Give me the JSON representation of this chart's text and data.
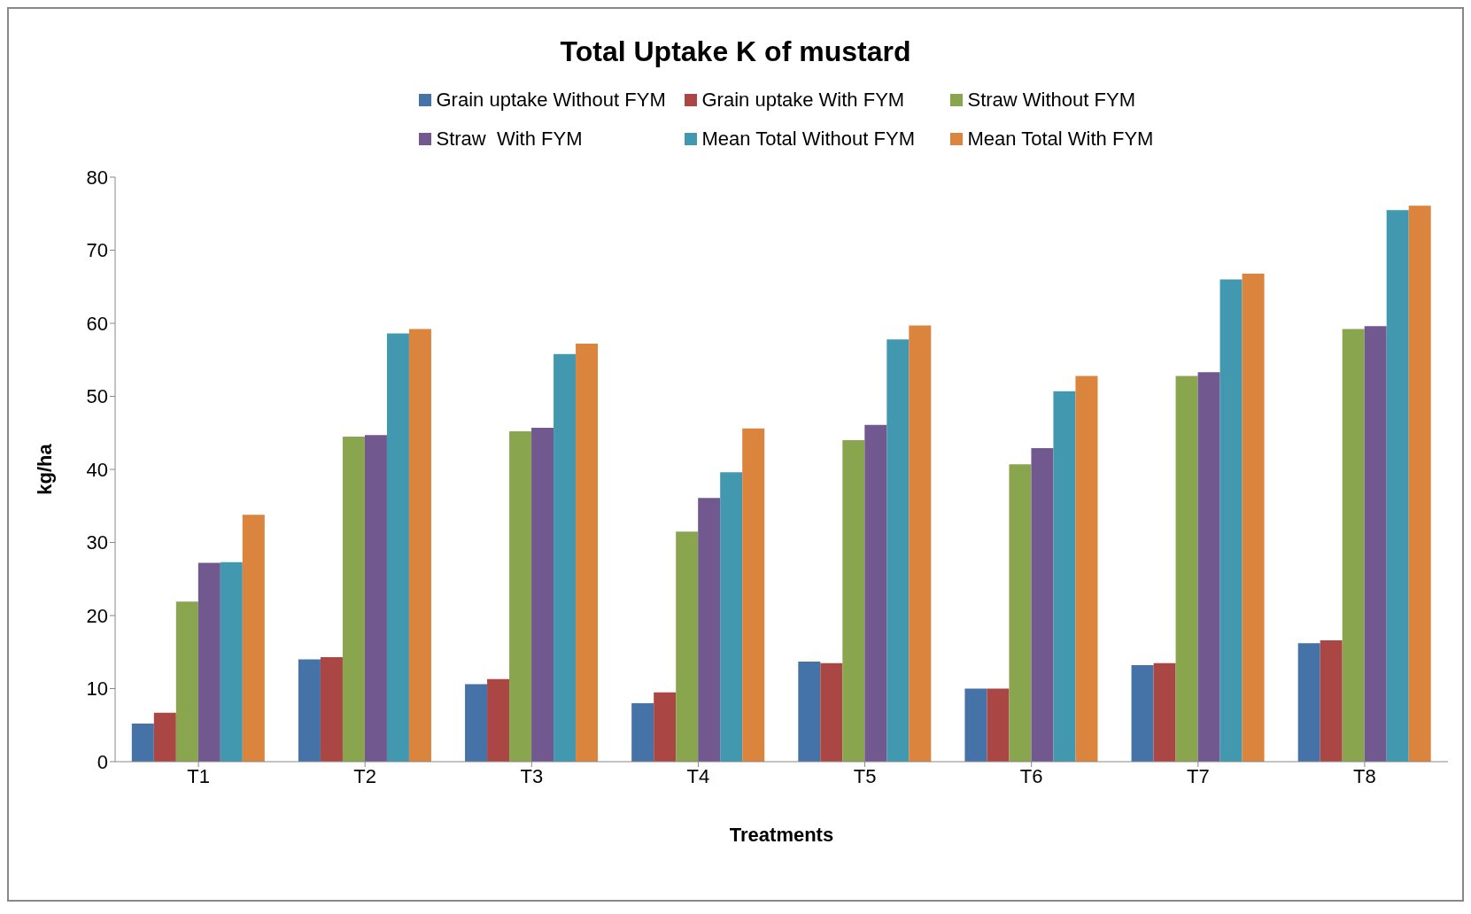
{
  "chart_data": {
    "type": "bar",
    "title": "Total Uptake K of mustard",
    "xlabel": "Treatments",
    "ylabel": "kg/ha",
    "categories": [
      "T1",
      "T2",
      "T3",
      "T4",
      "T5",
      "T6",
      "T7",
      "T8"
    ],
    "series": [
      {
        "name": "Grain uptake Without FYM",
        "color": "#4572a7",
        "values": [
          5.2,
          14.0,
          10.6,
          8.0,
          13.7,
          10.0,
          13.2,
          16.2
        ]
      },
      {
        "name": "Grain uptake With FYM",
        "color": "#aa4643",
        "values": [
          6.7,
          14.3,
          11.3,
          9.5,
          13.5,
          10.0,
          13.5,
          16.6
        ]
      },
      {
        "name": "Straw Without FYM",
        "color": "#89a54e",
        "values": [
          21.9,
          44.5,
          45.2,
          31.5,
          44.0,
          40.7,
          52.8,
          59.2
        ]
      },
      {
        "name": "Straw  With FYM",
        "color": "#71588f",
        "values": [
          27.2,
          44.7,
          45.7,
          36.1,
          46.1,
          42.9,
          53.3,
          59.6
        ]
      },
      {
        "name": "Mean Total Without FYM",
        "color": "#4198af",
        "values": [
          27.3,
          58.6,
          55.8,
          39.6,
          57.8,
          50.7,
          66.0,
          75.5
        ]
      },
      {
        "name": "Mean Total With FYM",
        "color": "#db843d",
        "values": [
          33.8,
          59.2,
          57.2,
          45.6,
          59.7,
          52.8,
          66.8,
          76.1
        ]
      }
    ],
    "ylim": [
      0,
      80
    ],
    "yticks": [
      0,
      10,
      20,
      30,
      40,
      50,
      60,
      70,
      80
    ],
    "grid": false,
    "legend": "top"
  }
}
